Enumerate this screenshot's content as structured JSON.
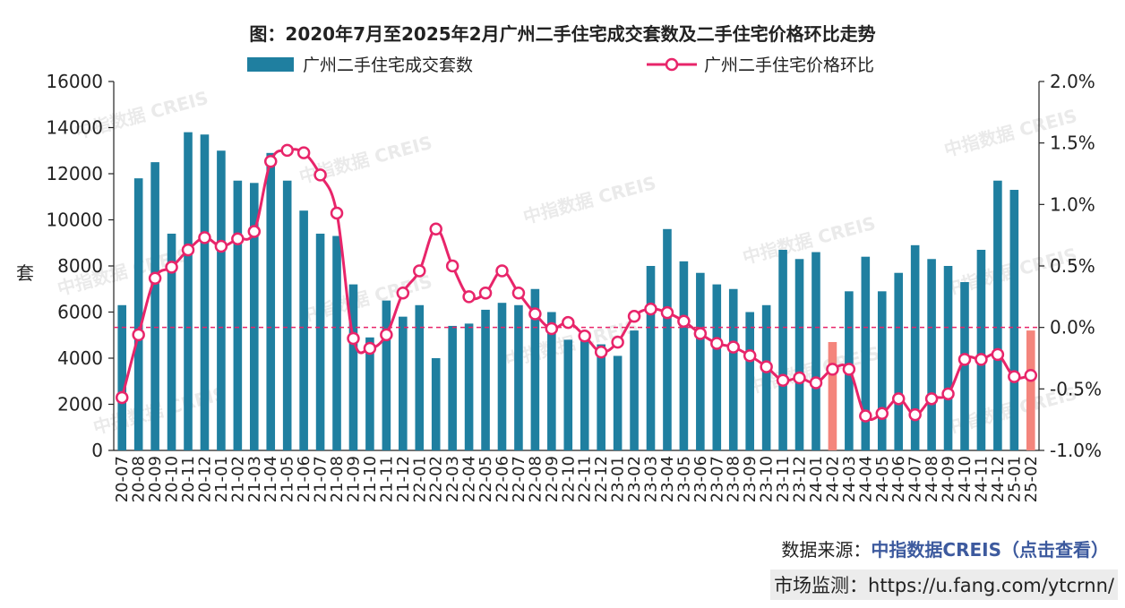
{
  "chart_data": {
    "type": "bar+line",
    "title": "图：2020年7月至2025年2月广州二手住宅成交套数及二手住宅价格环比走势",
    "ylabel_left": "套",
    "ylim_left": [
      0,
      16000
    ],
    "yticks_left": [
      "0",
      "2000",
      "4000",
      "6000",
      "8000",
      "10000",
      "12000",
      "14000",
      "16000"
    ],
    "ylim_right": [
      -1.0,
      2.0
    ],
    "yticks_right": [
      "-1.0%",
      "-0.5%",
      "0.0%",
      "0.5%",
      "1.0%",
      "1.5%",
      "2.0%"
    ],
    "watermark": "中指数据 CREIS",
    "categories": [
      "20-07",
      "20-08",
      "20-09",
      "20-10",
      "20-11",
      "20-12",
      "21-01",
      "21-02",
      "21-03",
      "21-04",
      "21-05",
      "21-06",
      "21-07",
      "21-08",
      "21-09",
      "21-10",
      "21-11",
      "21-12",
      "22-01",
      "22-02",
      "22-03",
      "22-04",
      "22-05",
      "22-06",
      "22-07",
      "22-08",
      "22-09",
      "22-10",
      "22-11",
      "22-12",
      "23-01",
      "23-02",
      "23-03",
      "23-04",
      "23-05",
      "23-06",
      "23-07",
      "23-08",
      "23-09",
      "23-10",
      "23-11",
      "23-12",
      "24-01",
      "24-02",
      "24-03",
      "24-04",
      "24-05",
      "24-06",
      "24-07",
      "24-08",
      "24-09",
      "24-10",
      "24-11",
      "24-12",
      "25-01",
      "25-02"
    ],
    "series": [
      {
        "name": "广州二手住宅成交套数",
        "type": "bar",
        "color": "#1f7fa0",
        "highlight_color": "#f4857c",
        "highlight_categories": [
          "24-02",
          "25-02"
        ],
        "values": [
          6300,
          11800,
          12500,
          9400,
          13800,
          13700,
          13000,
          11700,
          11600,
          12900,
          11700,
          10400,
          9400,
          9300,
          7200,
          4900,
          6500,
          5800,
          6300,
          4000,
          5400,
          5500,
          6100,
          6400,
          6300,
          7000,
          6000,
          4800,
          4800,
          4600,
          4100,
          5200,
          8000,
          9600,
          8200,
          7700,
          7200,
          7000,
          6000,
          6300,
          8700,
          8300,
          8600,
          4700,
          6900,
          8400,
          6900,
          7700,
          8900,
          8300,
          8000,
          7300,
          8700,
          11700,
          11300,
          5200
        ]
      },
      {
        "name": "广州二手住宅价格环比",
        "type": "line",
        "unit": "%",
        "color": "#e8256a",
        "values": [
          -0.57,
          -0.06,
          0.4,
          0.49,
          0.63,
          0.73,
          0.66,
          0.72,
          0.78,
          1.35,
          1.44,
          1.42,
          1.24,
          0.93,
          -0.09,
          -0.17,
          -0.06,
          0.28,
          0.46,
          0.8,
          0.5,
          0.25,
          0.28,
          0.46,
          0.28,
          0.11,
          -0.01,
          0.04,
          -0.07,
          -0.2,
          -0.12,
          0.09,
          0.15,
          0.12,
          0.05,
          -0.05,
          -0.13,
          -0.16,
          -0.23,
          -0.32,
          -0.43,
          -0.41,
          -0.45,
          -0.34,
          -0.34,
          -0.72,
          -0.7,
          -0.58,
          -0.71,
          -0.58,
          -0.54,
          -0.26,
          -0.26,
          -0.22,
          -0.4,
          -0.39
        ]
      }
    ]
  },
  "footer": {
    "source_label": "数据来源：",
    "source_link": "中指数据CREIS（点击查看）",
    "monitor_text": "市场监测：https://u.fang.com/ytcrnn/"
  }
}
